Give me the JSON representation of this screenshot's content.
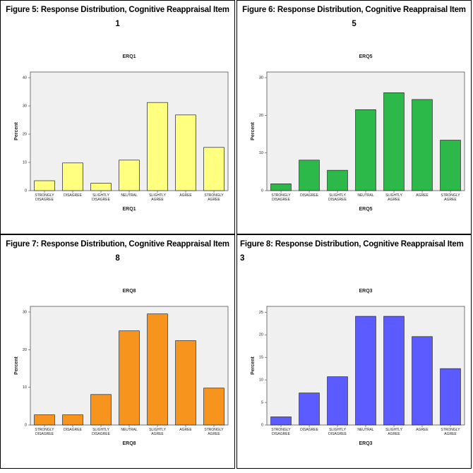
{
  "chart_data": [
    {
      "type": "bar",
      "caption": "Figure 5: Response Distribution, Cognitive Reappraisal Item 1",
      "title": "ERQ1",
      "x_label": "ERQ1",
      "y_label": "Percent",
      "categories": [
        "STRONGLY DISAGREE",
        "DISAGREE",
        "SLIGHTLY DISAGREE",
        "NEUTRAL",
        "SLIGHTLY AGREE",
        "AGREE",
        "STRONGLY AGREE"
      ],
      "values": [
        3.5,
        9.8,
        2.6,
        10.8,
        31.2,
        26.8,
        15.3
      ],
      "color": "#ffff80",
      "ylim": [
        0,
        42
      ],
      "yticks": [
        0,
        10,
        20,
        30,
        40
      ]
    },
    {
      "type": "bar",
      "caption": "Figure 6: Response Distribution, Cognitive Reappraisal Item 5",
      "title": "ERQ5",
      "x_label": "ERQ5",
      "y_label": "Percent",
      "categories": [
        "STRONGLY DISAGREE",
        "DISAGREE",
        "SLIGHTLY DISAGREE",
        "NEUTRAL",
        "SLIGHTLY AGREE",
        "AGREE",
        "STRONGLY AGREE"
      ],
      "values": [
        1.8,
        8.1,
        5.4,
        21.5,
        26,
        24.2,
        13.4
      ],
      "color": "#2db84a",
      "ylim": [
        0,
        31.5
      ],
      "yticks": [
        0,
        10,
        20,
        30
      ]
    },
    {
      "type": "bar",
      "caption": "Figure 7: Response Distribution, Cognitive Reappraisal Item 8",
      "title": "ERQ8",
      "x_label": "ERQ8",
      "y_label": "Percent",
      "categories": [
        "STRONGLY DISAGREE",
        "DISAGREE",
        "SLIGHTLY DISAGREE",
        "NEUTRAL",
        "SLIGHTLY AGREE",
        "AGREE",
        "STRONGLY AGREE"
      ],
      "values": [
        2.7,
        2.7,
        8.1,
        25,
        29.5,
        22.4,
        9.8
      ],
      "color": "#f7941d",
      "ylim": [
        0,
        31.5
      ],
      "yticks": [
        0,
        10,
        20,
        30
      ]
    },
    {
      "type": "bar",
      "caption": "Figure 8: Response Distribution, Cognitive Reappraisal Item 3",
      "title": "ERQ3",
      "x_label": "ERQ3",
      "y_label": "Percent",
      "categories": [
        "STRONGLY DISAGREE",
        "DISAGREE",
        "SLIGHTLY DISAGREE",
        "NEUTRAL",
        "SLIGHTLY AGREE",
        "AGREE",
        "STRONGLY AGREE"
      ],
      "values": [
        1.8,
        7.1,
        10.7,
        24.1,
        24.1,
        19.6,
        12.5
      ],
      "color": "#5b5bff",
      "ylim": [
        0,
        26.3
      ],
      "yticks": [
        0,
        5,
        10,
        15,
        20,
        25
      ]
    }
  ]
}
